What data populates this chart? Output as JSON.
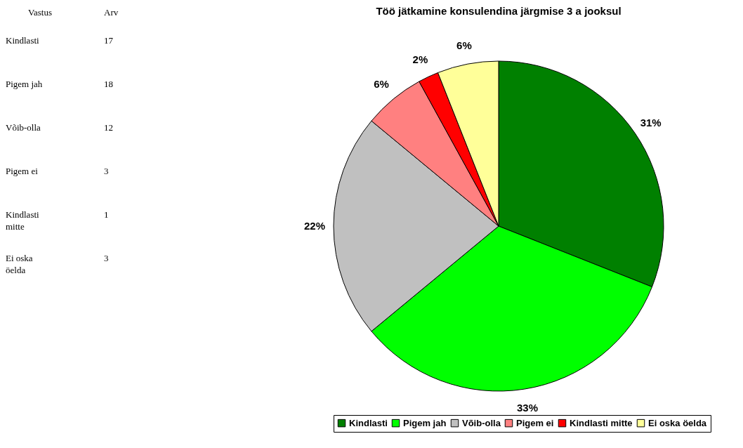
{
  "chart_data": [
    {
      "type": "other",
      "annotations": [
        "Vastus",
        "Arv",
        "Kindlasti",
        "17",
        "Pigem jah",
        "18",
        "Võib-olla",
        "12",
        "Pigem ei",
        "3",
        "Kindlasti mitte",
        "1",
        "Ei oska öelda",
        "3"
      ]
    },
    {
      "type": "pie",
      "title": "Töö jätkamine konsulendina järgmise 3 a jooksul",
      "categories": [
        "Kindlasti",
        "Pigem jah",
        "Võib-olla",
        "Pigem ei",
        "Kindlasti mitte",
        "Ei oska öelda"
      ],
      "values": [
        31,
        33,
        22,
        6,
        2,
        6
      ],
      "value_labels": [
        "31%",
        "33%",
        "22%",
        "6%",
        "2%",
        "6%"
      ],
      "colors": [
        "#008000",
        "#00ff00",
        "#c0c0c0",
        "#ff8080",
        "#ff0000",
        "#ffff99"
      ],
      "legend": "bottom"
    }
  ]
}
